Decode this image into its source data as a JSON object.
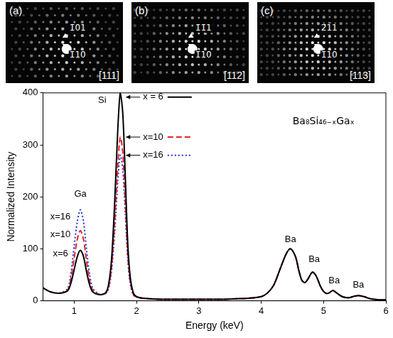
{
  "panels": [
    {
      "letter": "(a)",
      "zone": "[111]",
      "spots": [
        "1̄01",
        "1̄10"
      ]
    },
    {
      "letter": "(b)",
      "zone": "[112]",
      "spots": [
        "1̄1̄1",
        "1̄10"
      ]
    },
    {
      "letter": "(c)",
      "zone": "[113]",
      "spots": [
        "2̄11",
        "1̄10"
      ]
    }
  ],
  "chart_data": {
    "type": "line",
    "x_label": "Energy (keV)",
    "y_label": "Normalized Intensity",
    "xlim": [
      0.5,
      6
    ],
    "xticks": [
      1,
      2,
      3,
      4,
      5,
      6
    ],
    "ylim": [
      0,
      400
    ],
    "yticks": [
      0,
      100,
      200,
      300,
      400
    ],
    "grid": false,
    "x": [
      0.5,
      0.6,
      0.7,
      0.8,
      0.9,
      0.95,
      1.0,
      1.05,
      1.1,
      1.15,
      1.2,
      1.25,
      1.3,
      1.4,
      1.5,
      1.55,
      1.6,
      1.65,
      1.7,
      1.74,
      1.78,
      1.82,
      1.86,
      1.9,
      1.95,
      2.0,
      2.1,
      2.2,
      2.4,
      2.6,
      2.8,
      3.0,
      3.2,
      3.4,
      3.6,
      3.8,
      4.0,
      4.1,
      4.2,
      4.3,
      4.4,
      4.47,
      4.55,
      4.6,
      4.65,
      4.7,
      4.75,
      4.82,
      4.88,
      4.95,
      5.0,
      5.05,
      5.1,
      5.15,
      5.2,
      5.3,
      5.4,
      5.5,
      5.56,
      5.65,
      5.75,
      5.9,
      6.0
    ],
    "series": [
      {
        "name": "x = 6",
        "color": "#000000",
        "line_style": "solid",
        "values": [
          25,
          18,
          15,
          15,
          20,
          35,
          60,
          85,
          97,
          85,
          55,
          30,
          17,
          12,
          15,
          30,
          80,
          190,
          330,
          400,
          360,
          240,
          110,
          45,
          15,
          8,
          5,
          4,
          3,
          3,
          3,
          3,
          3,
          3,
          4,
          5,
          8,
          15,
          30,
          60,
          90,
          100,
          85,
          60,
          40,
          35,
          42,
          55,
          48,
          28,
          18,
          14,
          16,
          20,
          16,
          8,
          6,
          9,
          10,
          8,
          4,
          2,
          2
        ]
      },
      {
        "name": "x=10",
        "color": "#e8202a",
        "line_style": "dashed",
        "values": [
          25,
          18,
          15,
          15,
          22,
          45,
          82,
          118,
          135,
          118,
          75,
          38,
          20,
          12,
          14,
          25,
          65,
          150,
          260,
          315,
          285,
          190,
          88,
          36,
          12,
          7,
          5,
          4,
          3,
          3,
          3,
          3,
          3,
          3,
          4,
          5,
          8,
          15,
          30,
          60,
          90,
          100,
          85,
          60,
          40,
          35,
          42,
          55,
          48,
          28,
          18,
          14,
          16,
          20,
          16,
          8,
          6,
          9,
          10,
          8,
          4,
          2,
          2
        ]
      },
      {
        "name": "x=16",
        "color": "#1f2fd8",
        "line_style": "dotted",
        "values": [
          25,
          18,
          15,
          16,
          24,
          55,
          105,
          152,
          175,
          152,
          97,
          48,
          24,
          13,
          14,
          22,
          58,
          133,
          232,
          280,
          252,
          168,
          78,
          32,
          11,
          7,
          5,
          4,
          3,
          3,
          3,
          3,
          3,
          3,
          4,
          5,
          8,
          15,
          30,
          60,
          90,
          100,
          85,
          60,
          40,
          35,
          42,
          55,
          48,
          28,
          18,
          14,
          16,
          20,
          16,
          8,
          6,
          9,
          10,
          8,
          4,
          2,
          2
        ]
      }
    ],
    "annotations": [
      {
        "text": "Si",
        "x": 1.45,
        "y": 385
      },
      {
        "text": "Ga",
        "x": 1.1,
        "y": 205
      },
      {
        "text": "x=16",
        "x": 0.78,
        "y": 162
      },
      {
        "text": "x=10",
        "x": 0.78,
        "y": 127
      },
      {
        "text": "x=6",
        "x": 0.78,
        "y": 90
      },
      {
        "text": "Ba",
        "x": 4.47,
        "y": 118
      },
      {
        "text": "Ba",
        "x": 4.85,
        "y": 80
      },
      {
        "text": "Ba",
        "x": 5.17,
        "y": 38
      },
      {
        "text": "Ba",
        "x": 5.56,
        "y": 30
      },
      {
        "text": "Ba₈Si₄₆₋ₓGaₓ",
        "x": 5.0,
        "y": 345
      }
    ]
  }
}
